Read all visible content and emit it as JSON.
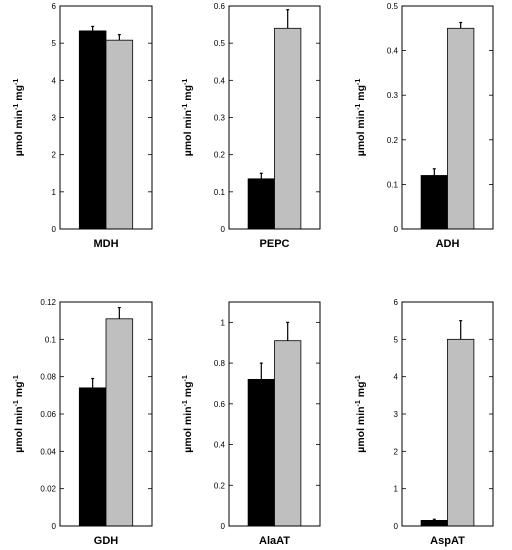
{
  "chart_data": [
    {
      "type": "bar",
      "xlabel": "MDH",
      "ylabel": "µmol min-1 mg-1",
      "ylabel_parts": [
        "µmol min",
        "-1",
        " mg",
        "-1"
      ],
      "ylim": [
        0,
        6
      ],
      "yticks": [
        "0",
        "1",
        "2",
        "3",
        "4",
        "5",
        "6"
      ],
      "tick_values": [
        0,
        1,
        2,
        3,
        4,
        5,
        6
      ],
      "series": [
        {
          "color": "#000000",
          "value": 5.33,
          "error": 0.12
        },
        {
          "color": "#bfbfbf",
          "value": 5.08,
          "error": 0.15
        }
      ]
    },
    {
      "type": "bar",
      "xlabel": "PEPC",
      "ylabel": "µmol min-1 mg-1",
      "ylabel_parts": [
        "µmol min",
        "-1",
        " mg",
        "-1"
      ],
      "ylim": [
        0,
        0.6
      ],
      "yticks": [
        "0",
        "0.1",
        "0.2",
        "0.3",
        "0.4",
        "0.5",
        "0.6"
      ],
      "tick_values": [
        0,
        0.1,
        0.2,
        0.3,
        0.4,
        0.5,
        0.6
      ],
      "series": [
        {
          "color": "#000000",
          "value": 0.135,
          "error": 0.015
        },
        {
          "color": "#bfbfbf",
          "value": 0.54,
          "error": 0.05
        }
      ]
    },
    {
      "type": "bar",
      "xlabel": "ADH",
      "ylabel": "µmol min-1 mg-1",
      "ylabel_parts": [
        "µmol min",
        "-1",
        " mg",
        "-1"
      ],
      "ylim": [
        0,
        0.5
      ],
      "yticks": [
        "0",
        "0.1",
        "0.2",
        "0.3",
        "0.4",
        "0.5"
      ],
      "tick_values": [
        0,
        0.1,
        0.2,
        0.3,
        0.4,
        0.5
      ],
      "series": [
        {
          "color": "#000000",
          "value": 0.12,
          "error": 0.015
        },
        {
          "color": "#bfbfbf",
          "value": 0.45,
          "error": 0.013
        }
      ]
    },
    {
      "type": "bar",
      "xlabel": "GDH",
      "ylabel": "µmol min-1 mg-1",
      "ylabel_parts": [
        "µmol min",
        "-1",
        " mg",
        "-1"
      ],
      "ylim": [
        0,
        0.12
      ],
      "yticks": [
        "0",
        "0.02",
        "0.04",
        "0.06",
        "0.08",
        "0.1",
        "0.12"
      ],
      "tick_values": [
        0,
        0.02,
        0.04,
        0.06,
        0.08,
        0.1,
        0.12
      ],
      "series": [
        {
          "color": "#000000",
          "value": 0.074,
          "error": 0.005
        },
        {
          "color": "#bfbfbf",
          "value": 0.111,
          "error": 0.006
        }
      ]
    },
    {
      "type": "bar",
      "xlabel": "AlaAT",
      "ylabel": "µmol min-1 mg-1",
      "ylabel_parts": [
        "µmol min",
        "-1",
        " mg",
        "-1"
      ],
      "ylim": [
        0,
        1.1
      ],
      "yticks": [
        "0",
        "0.2",
        "0.4",
        "0.6",
        "0.8",
        "1"
      ],
      "tick_values": [
        0,
        0.2,
        0.4,
        0.6,
        0.8,
        1.0
      ],
      "series": [
        {
          "color": "#000000",
          "value": 0.72,
          "error": 0.08
        },
        {
          "color": "#bfbfbf",
          "value": 0.91,
          "error": 0.09
        }
      ]
    },
    {
      "type": "bar",
      "xlabel": "AspAT",
      "ylabel": "µmol min-1 mg-1",
      "ylabel_parts": [
        "µmol min",
        "-1",
        " mg",
        "-1"
      ],
      "ylim": [
        0,
        6
      ],
      "yticks": [
        "0",
        "1",
        "2",
        "3",
        "4",
        "5",
        "6"
      ],
      "tick_values": [
        0,
        1,
        2,
        3,
        4,
        5,
        6
      ],
      "series": [
        {
          "color": "#000000",
          "value": 0.15,
          "error": 0.03
        },
        {
          "color": "#bfbfbf",
          "value": 5.0,
          "error": 0.5
        }
      ]
    }
  ]
}
